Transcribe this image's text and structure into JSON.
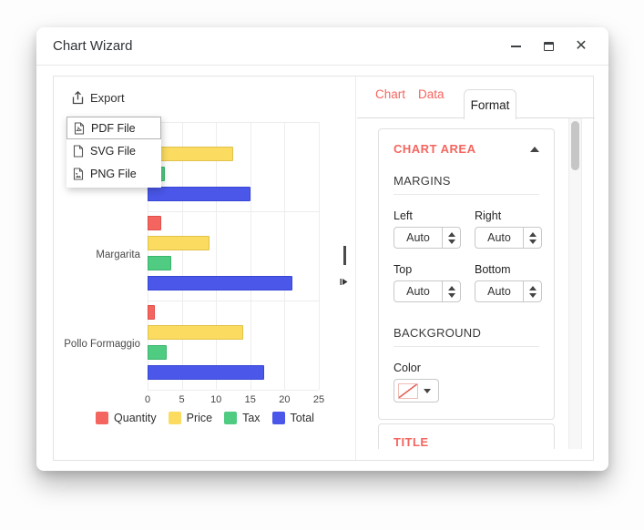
{
  "window": {
    "title": "Chart Wizard"
  },
  "icons": {
    "window": [
      "minimize-icon",
      "maximize-icon",
      "close-icon"
    ],
    "export": "share-upload-icon",
    "menu": [
      "pdf-file-icon",
      "svg-file-icon",
      "png-file-icon"
    ],
    "panel": [
      "collapse-up-icon",
      "stepper-up-icon",
      "stepper-down-icon",
      "dropdown-caret-icon",
      "no-color-swatch-icon",
      "splitter-collapse-icon"
    ]
  },
  "toolbar": {
    "export_label": "Export"
  },
  "export_menu": {
    "items": [
      {
        "label": "PDF File",
        "highlighted": true
      },
      {
        "label": "SVG File",
        "highlighted": false
      },
      {
        "label": "PNG File",
        "highlighted": false
      }
    ]
  },
  "chart_data": {
    "type": "bar",
    "orientation": "horizontal",
    "categories": [
      "",
      "Margarita",
      "Pollo Formaggio"
    ],
    "series": [
      {
        "name": "Quantity",
        "color": "#F4655F",
        "border": "#DE4F49",
        "values": [
          1,
          2,
          1
        ]
      },
      {
        "name": "Price",
        "color": "#FBDB60",
        "border": "#E0C24A",
        "values": [
          12.5,
          9,
          14
        ]
      },
      {
        "name": "Tax",
        "color": "#4FCB82",
        "border": "#3AB46C",
        "values": [
          2.5,
          3.5,
          2.8
        ]
      },
      {
        "name": "Total",
        "color": "#4A57E9",
        "border": "#3846D6",
        "values": [
          15,
          21.2,
          17
        ]
      }
    ],
    "xlim": [
      0,
      25
    ],
    "xticks": [
      0,
      5,
      10,
      15,
      20,
      25
    ],
    "grid": true,
    "legend_position": "bottom",
    "note_first_category_label_occluded_by_menu": true
  },
  "tabs": [
    {
      "label": "Chart",
      "active": false
    },
    {
      "label": "Data",
      "active": false
    },
    {
      "label": "Format",
      "active": true
    }
  ],
  "format_panel": {
    "section_title": "CHART AREA",
    "margins": {
      "title": "MARGINS",
      "fields": [
        {
          "label": "Left",
          "value": "Auto"
        },
        {
          "label": "Right",
          "value": "Auto"
        },
        {
          "label": "Top",
          "value": "Auto"
        },
        {
          "label": "Bottom",
          "value": "Auto"
        }
      ]
    },
    "background": {
      "title": "BACKGROUND",
      "color_label": "Color",
      "color_value": "none"
    },
    "next_section_title": "TITLE"
  },
  "colors": {
    "accent": "#F4655F",
    "gridline": "#EDEDED",
    "panel_border": "#E0E0E0",
    "scroll_thumb": "#C6C6C6"
  }
}
